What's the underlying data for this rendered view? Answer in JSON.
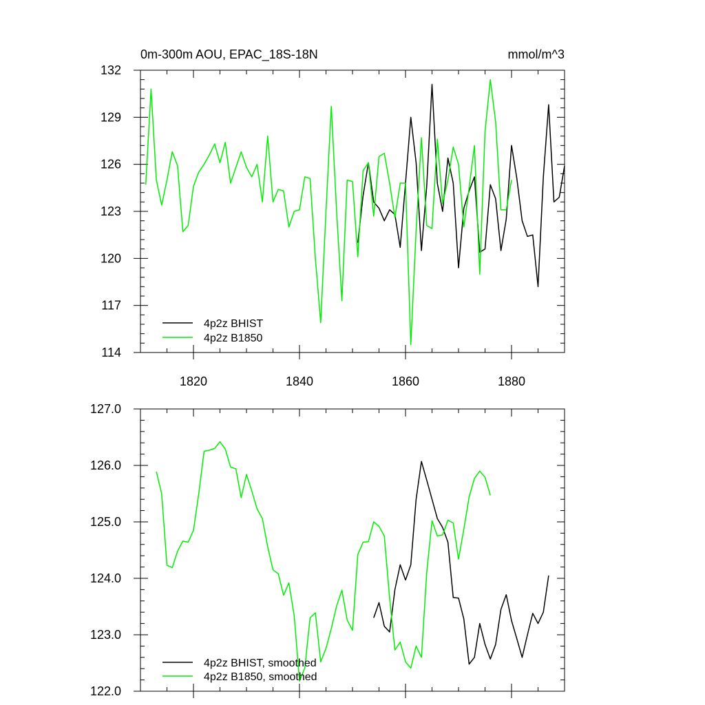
{
  "chart_data": [
    {
      "type": "line",
      "title": "0m-300m AOU, EPAC_18S-18N",
      "units": "mmol/m^3",
      "xlim": [
        1810,
        1890
      ],
      "ylim": [
        114,
        132
      ],
      "xticks": [
        1820,
        1840,
        1860,
        1880
      ],
      "xtick_labels": [
        "1820",
        "1840",
        "1860",
        "1880"
      ],
      "yticks": [
        114,
        117,
        120,
        123,
        126,
        129,
        132
      ],
      "ytick_labels": [
        "114",
        "117",
        "120",
        "123",
        "126",
        "129",
        "132"
      ],
      "legend_position": "bottom-left",
      "series": [
        {
          "name": "4p2z BHIST",
          "color": "#000000",
          "x": [
            1851,
            1852,
            1853,
            1854,
            1855,
            1856,
            1857,
            1858,
            1859,
            1860,
            1861,
            1862,
            1863,
            1864,
            1865,
            1866,
            1867,
            1868,
            1869,
            1870,
            1871,
            1872,
            1873,
            1874,
            1875,
            1876,
            1877,
            1878,
            1879,
            1880,
            1881,
            1882,
            1883,
            1884,
            1885,
            1886,
            1887,
            1888,
            1889,
            1890
          ],
          "y": [
            121.0,
            124.0,
            126.1,
            123.6,
            123.2,
            122.4,
            123.1,
            122.8,
            120.7,
            124.8,
            129.0,
            126.1,
            120.5,
            124.6,
            131.1,
            124.8,
            123.0,
            126.4,
            124.8,
            119.4,
            123.2,
            124.3,
            125.2,
            120.4,
            120.6,
            124.7,
            123.8,
            120.5,
            122.5,
            127.2,
            125.1,
            122.4,
            121.4,
            121.5,
            118.2,
            125.2,
            129.8,
            123.6,
            123.9,
            125.9
          ]
        },
        {
          "name": "4p2z B1850",
          "color": "#00ee00",
          "x": [
            1811,
            1812,
            1813,
            1814,
            1815,
            1816,
            1817,
            1818,
            1819,
            1820,
            1821,
            1822,
            1823,
            1824,
            1825,
            1826,
            1827,
            1828,
            1829,
            1830,
            1831,
            1832,
            1833,
            1834,
            1835,
            1836,
            1837,
            1838,
            1839,
            1840,
            1841,
            1842,
            1843,
            1844,
            1845,
            1846,
            1847,
            1848,
            1849,
            1850,
            1851,
            1852,
            1853,
            1854,
            1855,
            1856,
            1857,
            1858,
            1859,
            1860,
            1861,
            1862,
            1863,
            1864,
            1865,
            1866,
            1867,
            1868,
            1869,
            1870,
            1871,
            1872,
            1873,
            1874,
            1875,
            1876,
            1877,
            1878,
            1879,
            1880
          ],
          "y": [
            124.7,
            130.8,
            125.0,
            123.4,
            125.0,
            126.8,
            125.9,
            121.7,
            122.1,
            124.6,
            125.5,
            126.0,
            126.6,
            127.3,
            126.1,
            127.4,
            124.8,
            125.8,
            126.8,
            125.8,
            125.2,
            126.0,
            123.6,
            127.8,
            123.6,
            124.4,
            124.3,
            122.0,
            123.0,
            123.1,
            125.2,
            125.1,
            120.0,
            115.9,
            123.0,
            129.7,
            123.0,
            117.3,
            125.0,
            124.9,
            120.1,
            125.6,
            126.1,
            122.7,
            126.5,
            126.7,
            124.8,
            122.6,
            124.8,
            124.8,
            114.5,
            121.8,
            127.7,
            122.1,
            121.9,
            127.6,
            123.5,
            125.0,
            127.1,
            126.0,
            122.0,
            124.5,
            127.2,
            119.0,
            128.1,
            131.4,
            128.7,
            123.1,
            123.1,
            125.0
          ]
        }
      ]
    },
    {
      "type": "line",
      "title": "",
      "xlim": [
        1810,
        1890
      ],
      "ylim": [
        122.0,
        127.0
      ],
      "yticks": [
        122.0,
        123.0,
        124.0,
        125.0,
        126.0,
        127.0
      ],
      "ytick_labels": [
        "122.0",
        "123.0",
        "124.0",
        "125.0",
        "126.0",
        "127.0"
      ],
      "xticks": [
        1820,
        1840,
        1860,
        1880
      ],
      "legend_position": "bottom-left",
      "series": [
        {
          "name": "4p2z BHIST, smoothed",
          "color": "#000000",
          "x": [
            1854,
            1855,
            1856,
            1857,
            1858,
            1859,
            1860,
            1861,
            1862,
            1863,
            1864,
            1865,
            1866,
            1867,
            1868,
            1869,
            1870,
            1871,
            1872,
            1873,
            1874,
            1875,
            1876,
            1877,
            1878,
            1879,
            1880,
            1881,
            1882,
            1883,
            1884,
            1885,
            1886,
            1887
          ],
          "y": [
            123.3,
            123.57,
            123.15,
            123.05,
            123.8,
            124.24,
            123.97,
            124.24,
            125.4,
            126.07,
            125.74,
            125.4,
            125.06,
            124.9,
            124.64,
            123.66,
            123.65,
            123.28,
            122.48,
            122.6,
            123.2,
            122.83,
            122.57,
            122.83,
            123.45,
            123.71,
            123.25,
            122.93,
            122.6,
            123.0,
            123.38,
            123.2,
            123.4,
            124.05
          ]
        },
        {
          "name": "4p2z B1850, smoothed",
          "color": "#00ee00",
          "x": [
            1813,
            1814,
            1815,
            1816,
            1817,
            1818,
            1819,
            1820,
            1821,
            1822,
            1823,
            1824,
            1825,
            1826,
            1827,
            1828,
            1829,
            1830,
            1831,
            1832,
            1833,
            1834,
            1835,
            1836,
            1837,
            1838,
            1839,
            1840,
            1841,
            1842,
            1843,
            1844,
            1845,
            1846,
            1847,
            1848,
            1849,
            1850,
            1851,
            1852,
            1853,
            1854,
            1855,
            1856,
            1857,
            1858,
            1859,
            1860,
            1861,
            1862,
            1863,
            1864,
            1865,
            1866,
            1867,
            1868,
            1869,
            1870,
            1871,
            1872,
            1873,
            1874,
            1875,
            1876,
            1877
          ],
          "y": [
            125.89,
            125.5,
            124.23,
            124.19,
            124.48,
            124.66,
            124.64,
            124.85,
            125.5,
            126.25,
            126.27,
            126.3,
            126.42,
            126.29,
            125.97,
            125.94,
            125.43,
            125.84,
            125.55,
            125.23,
            125.06,
            124.56,
            124.15,
            124.08,
            123.7,
            123.92,
            123.34,
            122.18,
            122.41,
            123.3,
            123.39,
            122.52,
            122.76,
            123.11,
            123.51,
            123.79,
            123.26,
            123.08,
            124.42,
            124.64,
            124.65,
            125.0,
            124.92,
            124.75,
            123.65,
            122.73,
            122.87,
            122.52,
            122.41,
            122.8,
            122.6,
            124.1,
            125.02,
            124.75,
            124.77,
            125.03,
            124.98,
            124.34,
            124.87,
            125.44,
            125.77,
            125.9,
            125.79,
            125.47,
            null
          ]
        }
      ]
    }
  ]
}
